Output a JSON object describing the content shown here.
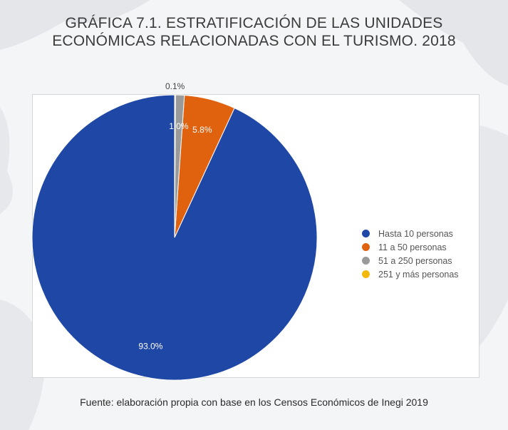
{
  "title": {
    "line1": "GRÁFICA 7.1. ESTRATIFICACIÓN DE LAS UNIDADES",
    "line2": "ECONÓMICAS RELACIONADAS CON EL TURISMO. 2018"
  },
  "source": "Fuente: elaboración propia con base en los Censos Económicos de Inegi 2019",
  "chart_data": {
    "type": "pie",
    "slices": [
      {
        "label": "Hasta 10 personas",
        "value": 93.0,
        "display": "93.0%",
        "color": "#1f47a6"
      },
      {
        "label": "11 a 50 personas",
        "value": 5.8,
        "display": "5.8%",
        "color": "#e0620f"
      },
      {
        "label": "51 a 250 personas",
        "value": 1.0,
        "display": "1.0%",
        "color": "#9a9a9a"
      },
      {
        "label": "251 y más personas",
        "value": 0.1,
        "display": "0.1%",
        "color": "#f2b90c"
      }
    ],
    "legend_position": "right",
    "start": "top",
    "direction": "counterclockwise"
  }
}
